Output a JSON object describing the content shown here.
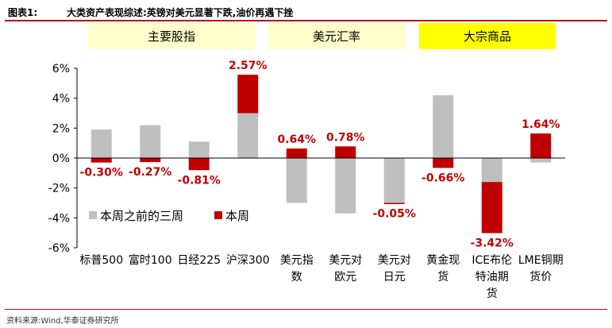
{
  "figure": {
    "label": "图表1:",
    "title": "大类资产表现综述:英镑对美元显著下跌,油价再遇下挫",
    "source": "资料来源:Wind,华泰证券研究所"
  },
  "groups": [
    {
      "label": "主要股指",
      "color": "#ffffcc"
    },
    {
      "label": "美元汇率",
      "color": "#ffffcc"
    },
    {
      "label": "大宗商品",
      "color": "#ffff00"
    }
  ],
  "chart_data": {
    "type": "bar",
    "stacked": true,
    "categories": [
      [
        "标普500"
      ],
      [
        "富时100"
      ],
      [
        "日经225"
      ],
      [
        "沪深300"
      ],
      [
        "美元指",
        "数"
      ],
      [
        "美元对",
        "欧元"
      ],
      [
        "美元对",
        "日元"
      ],
      [
        "黄金现",
        "货"
      ],
      [
        "ICE布伦",
        "特油期",
        "货"
      ],
      [
        "LME铜期",
        "货价"
      ]
    ],
    "series": [
      {
        "name": "本周之前的三周",
        "color": "#bfbfbf",
        "values": [
          1.9,
          2.2,
          1.1,
          3.0,
          -3.0,
          -3.7,
          -3.0,
          4.2,
          -1.6,
          -0.3
        ]
      },
      {
        "name": "本周",
        "color": "#c00000",
        "values": [
          -0.3,
          -0.27,
          -0.81,
          2.57,
          0.64,
          0.78,
          -0.05,
          -0.66,
          -3.42,
          1.64
        ]
      }
    ],
    "data_labels": [
      "-0.30%",
      "-0.27%",
      "-0.81%",
      "2.57%",
      "0.64%",
      "0.78%",
      "-0.05%",
      "-0.66%",
      "-3.42%",
      "1.64%"
    ],
    "yticks": [
      "6%",
      "4%",
      "2%",
      "0%",
      "-2%",
      "-4%",
      "-6%"
    ],
    "ylim": [
      -6,
      6
    ],
    "grid": false,
    "legend_position": "bottom-left"
  }
}
